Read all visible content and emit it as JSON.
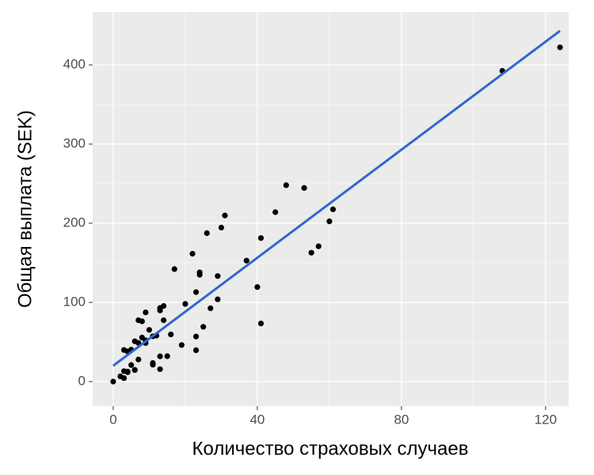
{
  "chart_data": {
    "type": "scatter",
    "x_label": "Количество страховых случаев",
    "y_label": "Общая выплата (SEK)",
    "x": [
      108,
      19,
      13,
      124,
      40,
      57,
      23,
      14,
      45,
      10,
      5,
      48,
      11,
      23,
      7,
      2,
      24,
      6,
      3,
      23,
      6,
      9,
      9,
      3,
      29,
      7,
      4,
      20,
      7,
      4,
      0,
      25,
      6,
      5,
      22,
      11,
      61,
      12,
      4,
      16,
      13,
      60,
      41,
      37,
      55,
      41,
      11,
      27,
      8,
      3,
      17,
      13,
      13,
      15,
      8,
      29,
      30,
      24,
      9,
      31,
      14,
      53,
      26
    ],
    "values": [
      392.5,
      46.2,
      15.7,
      422.2,
      119.4,
      170.9,
      56.9,
      77.5,
      214,
      65.3,
      20.9,
      248.1,
      23.5,
      39.6,
      48.8,
      6.6,
      134.9,
      50.9,
      4.4,
      113,
      14.8,
      48.7,
      52.1,
      13.2,
      103.9,
      77.5,
      11.8,
      98.1,
      27.9,
      38.1,
      0,
      69.2,
      14.6,
      40.3,
      161.5,
      57.2,
      217.6,
      58.1,
      12.6,
      59.6,
      89.9,
      202.4,
      181.3,
      152.8,
      162.8,
      73.4,
      21.3,
      92.6,
      76.1,
      39.9,
      142.1,
      93,
      31.9,
      32.1,
      55.6,
      133.3,
      194.5,
      137.9,
      87.4,
      209.8,
      95.5,
      244.6,
      187.5
    ],
    "color": "#000000",
    "fit": {
      "x": [
        0,
        124
      ],
      "y": [
        20,
        443
      ],
      "color": "#3366cc"
    },
    "xlim": [
      -5.7,
      126.4
    ],
    "ylim": [
      -31,
      467
    ],
    "xticks": [
      0,
      40,
      80,
      120
    ],
    "yticks": [
      0,
      100,
      200,
      300,
      400
    ],
    "grid": true
  }
}
